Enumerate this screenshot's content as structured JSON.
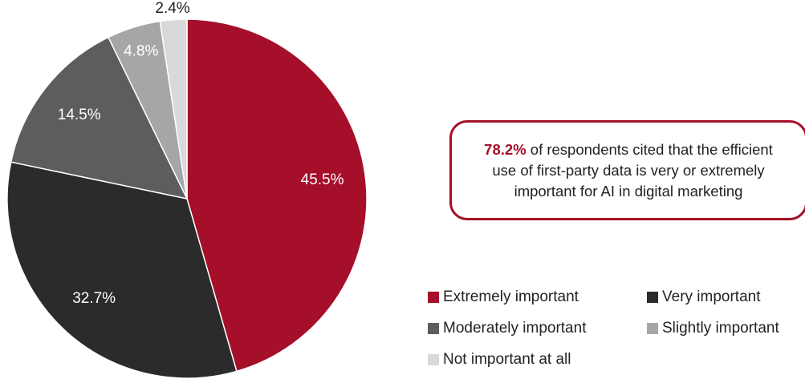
{
  "chart_data": {
    "type": "pie",
    "slices": [
      {
        "name": "Extremely important",
        "value": 45.5,
        "label": "45.5%",
        "color": "#a50f29",
        "label_color": "#ffffff"
      },
      {
        "name": "Very important",
        "value": 32.7,
        "label": "32.7%",
        "color": "#2b2b2b",
        "label_color": "#ffffff"
      },
      {
        "name": "Moderately important",
        "value": 14.5,
        "label": "14.5%",
        "color": "#5d5d5d",
        "label_color": "#ffffff"
      },
      {
        "name": "Slightly important",
        "value": 4.8,
        "label": "4.8%",
        "color": "#a6a6a6",
        "label_color": "#ffffff"
      },
      {
        "name": "Not important at all",
        "value": 2.4,
        "label": "2.4%",
        "color": "#d9d9d9",
        "label_color": "#222222"
      }
    ],
    "legend_position": "bottom-right"
  },
  "callout": {
    "highlight": "78.2%",
    "text": " of respondents cited that the efficient use of first-party data is very or extremely important for AI in digital marketing",
    "border_color": "#a50f29"
  },
  "legend": {
    "items": [
      {
        "label": "Extremely important",
        "color": "#a50f29"
      },
      {
        "label": "Very important",
        "color": "#2b2b2b"
      },
      {
        "label": "Moderately important",
        "color": "#5d5d5d"
      },
      {
        "label": "Slightly important",
        "color": "#a6a6a6"
      },
      {
        "label": "Not important at all",
        "color": "#d9d9d9"
      }
    ]
  }
}
